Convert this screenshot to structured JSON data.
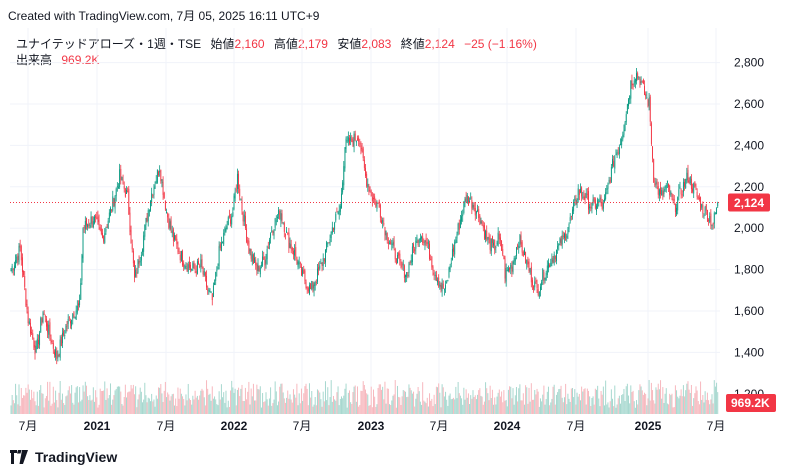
{
  "header": {
    "created_with": "Created with TradingView.com, 7月 05, 2025 16:11 UTC+9"
  },
  "legend": {
    "symbol": "ユナイテッドアローズ・1週・TSE",
    "open_label": "始値",
    "open": "2,160",
    "high_label": "高値",
    "high": "2,179",
    "low_label": "安値",
    "low": "2,083",
    "close_label": "終値",
    "close": "2,124",
    "change": "−25 (−1.16%)",
    "volume_label": "出来高",
    "volume": "969.2K"
  },
  "footer": {
    "brand": "TradingView"
  },
  "colors": {
    "up": "#089981",
    "down": "#f23645",
    "up_volume": "#a7d8cf",
    "down_volume": "#f7b8be",
    "grid": "#f0f3fa",
    "last_price_line": "#f23645"
  },
  "chart_data": {
    "type": "candlestick",
    "price_axis": {
      "min": 1200,
      "max": 2900,
      "ticks": [
        1400,
        1600,
        1800,
        2000,
        2200,
        2400,
        2600,
        2800
      ],
      "tick_labels": [
        "1,400",
        "1,600",
        "1,800",
        "2,000",
        "2,200",
        "2,400",
        "2,600",
        "2,800"
      ],
      "partial_bottom_label": "1,200"
    },
    "time_axis": {
      "labels": [
        "7月",
        "2021",
        "7月",
        "2022",
        "7月",
        "2023",
        "7月",
        "2024",
        "7月",
        "2025",
        "7月"
      ],
      "bold": [
        "2021",
        "2022",
        "2023",
        "2024",
        "2025"
      ]
    },
    "last_price": 2124,
    "last_price_label": "2,124",
    "volume_label": "969.2K",
    "anchors": [
      {
        "w": 0,
        "p": 1800
      },
      {
        "w": 8,
        "p": 1900
      },
      {
        "w": 15,
        "p": 1560
      },
      {
        "w": 22,
        "p": 1400
      },
      {
        "w": 28,
        "p": 1600
      },
      {
        "w": 34,
        "p": 1480
      },
      {
        "w": 40,
        "p": 1380
      },
      {
        "w": 48,
        "p": 1520
      },
      {
        "w": 55,
        "p": 1600
      },
      {
        "w": 60,
        "p": 1620
      },
      {
        "w": 63,
        "p": 2000
      },
      {
        "w": 72,
        "p": 2050
      },
      {
        "w": 80,
        "p": 1950
      },
      {
        "w": 88,
        "p": 2100
      },
      {
        "w": 95,
        "p": 2250
      },
      {
        "w": 102,
        "p": 2150
      },
      {
        "w": 108,
        "p": 1750
      },
      {
        "w": 114,
        "p": 1900
      },
      {
        "w": 122,
        "p": 2150
      },
      {
        "w": 130,
        "p": 2300
      },
      {
        "w": 136,
        "p": 2080
      },
      {
        "w": 142,
        "p": 1950
      },
      {
        "w": 150,
        "p": 1850
      },
      {
        "w": 158,
        "p": 1800
      },
      {
        "w": 166,
        "p": 1820
      },
      {
        "w": 172,
        "p": 1700
      },
      {
        "w": 176,
        "p": 1650
      },
      {
        "w": 182,
        "p": 1880
      },
      {
        "w": 188,
        "p": 2000
      },
      {
        "w": 194,
        "p": 2080
      },
      {
        "w": 198,
        "p": 2250
      },
      {
        "w": 202,
        "p": 2100
      },
      {
        "w": 208,
        "p": 1900
      },
      {
        "w": 215,
        "p": 1800
      },
      {
        "w": 222,
        "p": 1850
      },
      {
        "w": 228,
        "p": 2000
      },
      {
        "w": 236,
        "p": 2080
      },
      {
        "w": 242,
        "p": 1950
      },
      {
        "w": 248,
        "p": 1880
      },
      {
        "w": 254,
        "p": 1780
      },
      {
        "w": 262,
        "p": 1700
      },
      {
        "w": 270,
        "p": 1800
      },
      {
        "w": 276,
        "p": 1900
      },
      {
        "w": 282,
        "p": 2020
      },
      {
        "w": 288,
        "p": 2100
      },
      {
        "w": 292,
        "p": 2400
      },
      {
        "w": 298,
        "p": 2420
      },
      {
        "w": 304,
        "p": 2450
      },
      {
        "w": 310,
        "p": 2250
      },
      {
        "w": 316,
        "p": 2150
      },
      {
        "w": 322,
        "p": 2100
      },
      {
        "w": 328,
        "p": 1980
      },
      {
        "w": 334,
        "p": 1900
      },
      {
        "w": 340,
        "p": 1820
      },
      {
        "w": 346,
        "p": 1780
      },
      {
        "w": 352,
        "p": 1900
      },
      {
        "w": 358,
        "p": 1980
      },
      {
        "w": 364,
        "p": 1920
      },
      {
        "w": 370,
        "p": 1800
      },
      {
        "w": 376,
        "p": 1720
      },
      {
        "w": 380,
        "p": 1700
      },
      {
        "w": 386,
        "p": 1880
      },
      {
        "w": 392,
        "p": 2020
      },
      {
        "w": 398,
        "p": 2150
      },
      {
        "w": 404,
        "p": 2120
      },
      {
        "w": 410,
        "p": 2050
      },
      {
        "w": 416,
        "p": 1950
      },
      {
        "w": 422,
        "p": 1900
      },
      {
        "w": 426,
        "p": 1950
      },
      {
        "w": 430,
        "p": 1880
      },
      {
        "w": 432,
        "p": 1780
      },
      {
        "w": 438,
        "p": 1820
      },
      {
        "w": 444,
        "p": 1950
      },
      {
        "w": 450,
        "p": 1850
      },
      {
        "w": 456,
        "p": 1750
      },
      {
        "w": 460,
        "p": 1700
      },
      {
        "w": 466,
        "p": 1780
      },
      {
        "w": 472,
        "p": 1850
      },
      {
        "w": 478,
        "p": 1900
      },
      {
        "w": 484,
        "p": 1960
      },
      {
        "w": 490,
        "p": 2050
      },
      {
        "w": 496,
        "p": 2180
      },
      {
        "w": 502,
        "p": 2150
      },
      {
        "w": 508,
        "p": 2100
      },
      {
        "w": 514,
        "p": 2130
      },
      {
        "w": 518,
        "p": 2100
      },
      {
        "w": 522,
        "p": 2200
      },
      {
        "w": 528,
        "p": 2350
      },
      {
        "w": 532,
        "p": 2400
      },
      {
        "w": 536,
        "p": 2500
      },
      {
        "w": 542,
        "p": 2700
      },
      {
        "w": 546,
        "p": 2750
      },
      {
        "w": 550,
        "p": 2720
      },
      {
        "w": 554,
        "p": 2650
      },
      {
        "w": 558,
        "p": 2600
      },
      {
        "w": 562,
        "p": 2250
      },
      {
        "w": 568,
        "p": 2150
      },
      {
        "w": 574,
        "p": 2200
      },
      {
        "w": 580,
        "p": 2100
      },
      {
        "w": 586,
        "p": 2180
      },
      {
        "w": 592,
        "p": 2250
      },
      {
        "w": 598,
        "p": 2180
      },
      {
        "w": 604,
        "p": 2100
      },
      {
        "w": 610,
        "p": 2060
      },
      {
        "w": 614,
        "p": 2020
      },
      {
        "w": 618,
        "p": 2124
      }
    ]
  }
}
